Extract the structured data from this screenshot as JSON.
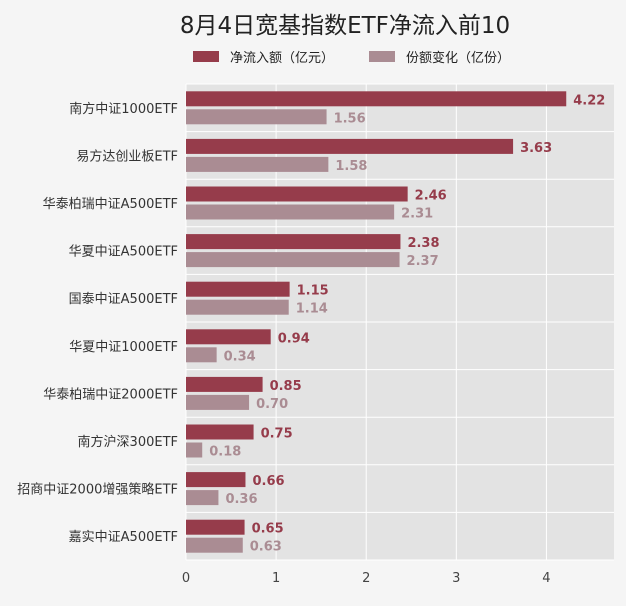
{
  "chart_data": {
    "type": "bar",
    "orientation": "horizontal",
    "title": "8月4日宽基指数ETF净流入前10",
    "categories": [
      "南方中证1000ETF",
      "易方达创业板ETF",
      "华泰柏瑞中证A500ETF",
      "华夏中证A500ETF",
      "国泰中证A500ETF",
      "华夏中证1000ETF",
      "华泰柏瑞中证2000ETF",
      "南方沪深300ETF",
      "招商中证2000增强策略ETF",
      "嘉实中证A500ETF"
    ],
    "series": [
      {
        "name": "净流入额（亿元）",
        "color": "#963c4b",
        "label_color": "#963c4b",
        "values": [
          4.22,
          3.63,
          2.46,
          2.38,
          1.15,
          0.94,
          0.85,
          0.75,
          0.66,
          0.65
        ]
      },
      {
        "name": "份额变化（亿份）",
        "color": "#aa8c93",
        "label_color": "#aa8c93",
        "values": [
          1.56,
          1.58,
          2.31,
          2.37,
          1.14,
          0.34,
          0.7,
          0.18,
          0.36,
          0.63
        ]
      }
    ],
    "xlim": [
      0,
      4.75
    ],
    "xticks": [
      "0",
      "1",
      "2",
      "3",
      "4"
    ],
    "grid": true,
    "legend_position": "top",
    "plot_background": "#e3e3e3"
  }
}
